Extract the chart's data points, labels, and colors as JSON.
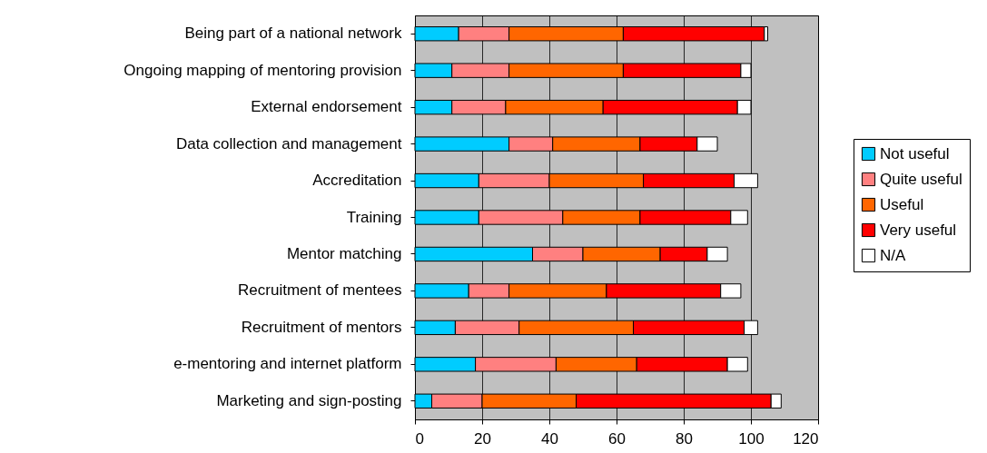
{
  "chart_data": {
    "type": "bar",
    "orientation": "horizontal",
    "stacked": true,
    "categories": [
      "Being part of a national network",
      "Ongoing mapping of mentoring provision",
      "External endorsement",
      "Data collection and management",
      "Accreditation",
      "Training",
      "Mentor matching",
      "Recruitment of mentees",
      "Recruitment of mentors",
      "e-mentoring and internet platform",
      "Marketing and sign-posting"
    ],
    "series": [
      {
        "name": "Not useful",
        "color": "#00ccff",
        "values": [
          13,
          11,
          11,
          28,
          19,
          19,
          35,
          16,
          12,
          18,
          5
        ]
      },
      {
        "name": "Quite useful",
        "color": "#ff8080",
        "values": [
          15,
          17,
          16,
          13,
          21,
          25,
          15,
          12,
          19,
          24,
          15
        ]
      },
      {
        "name": "Useful",
        "color": "#ff6600",
        "values": [
          34,
          34,
          29,
          26,
          28,
          23,
          23,
          29,
          34,
          24,
          28
        ]
      },
      {
        "name": "Very useful",
        "color": "#ff0000",
        "values": [
          42,
          35,
          40,
          17,
          27,
          27,
          14,
          34,
          33,
          27,
          58
        ]
      },
      {
        "name": "N/A",
        "color": "#ffffff",
        "values": [
          1,
          3,
          4,
          6,
          7,
          5,
          6,
          6,
          4,
          6,
          3
        ]
      }
    ],
    "xlim": [
      0,
      120
    ],
    "xticks": [
      0,
      20,
      40,
      60,
      80,
      100,
      120
    ],
    "grid": "x",
    "legend": "right"
  }
}
